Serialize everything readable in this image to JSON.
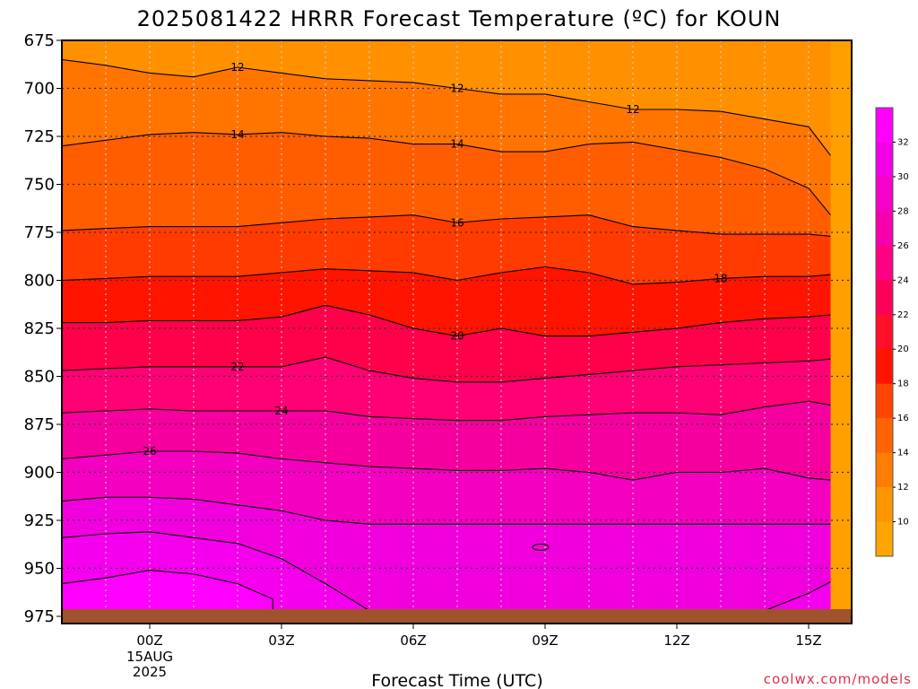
{
  "chart_data": {
    "type": "contour",
    "title": "2025081422 HRRR Forecast Temperature (ºC) for KOUN",
    "xlabel": "Forecast Time (UTC)",
    "ylabel": "",
    "y_axis": {
      "ticks": [
        675,
        700,
        725,
        750,
        775,
        800,
        825,
        850,
        875,
        900,
        925,
        950,
        975
      ],
      "range": [
        975,
        675
      ],
      "inverted": true
    },
    "x_axis": {
      "range_hours": [
        -3,
        15.5
      ],
      "ticks": [
        {
          "hour": 0,
          "label": "00Z",
          "date_line1": "15AUG",
          "date_line2": "2025"
        },
        {
          "hour": 3,
          "label": "03Z"
        },
        {
          "hour": 6,
          "label": "06Z"
        },
        {
          "hour": 9,
          "label": "09Z"
        },
        {
          "hour": 12,
          "label": "12Z"
        },
        {
          "hour": 15,
          "label": "15Z"
        }
      ]
    },
    "grid": true,
    "ground_color": "#a0522d",
    "colorbar": {
      "placement": "right",
      "labels": [
        "32",
        "30",
        "28",
        "26",
        "24",
        "22",
        "20",
        "18",
        "16",
        "14",
        "12",
        "10"
      ],
      "bands": [
        "#ff00ff",
        "#f400e6",
        "#f500c8",
        "#f500ac",
        "#ff0084",
        "#ff0058",
        "#ff0f28",
        "#ff1400",
        "#ff4500",
        "#ff6400",
        "#ff7d00",
        "#ff9600",
        "#ffa500"
      ]
    },
    "fill_bands": [
      {
        "bottom_isotherm": "12",
        "color": "#ff9100"
      },
      {
        "bottom_isotherm": "14",
        "color": "#ff7500"
      },
      {
        "bottom_isotherm": "16",
        "color": "#ff5d00"
      },
      {
        "bottom_isotherm": "18",
        "color": "#ff3b00"
      },
      {
        "bottom_isotherm": "20",
        "color": "#ff1400"
      },
      {
        "bottom_isotherm": "22",
        "color": "#ff004a"
      },
      {
        "bottom_isotherm": "24",
        "color": "#ff0075"
      },
      {
        "bottom_isotherm": "26",
        "color": "#f5009f"
      },
      {
        "bottom_isotherm": "28",
        "color": "#f400c1"
      },
      {
        "bottom_isotherm": "30",
        "color": "#f100de"
      },
      {
        "bottom_isotherm": "bottom",
        "color": "#f500ef"
      }
    ],
    "isotherms": [
      {
        "name": "12",
        "label_at": [
          2.0,
          7.0
        ],
        "label_at_2": [
          11.0,
          12.0
        ],
        "points": [
          [
            -3,
            684
          ],
          [
            -2,
            685
          ],
          [
            -1,
            688
          ],
          [
            0,
            692
          ],
          [
            1,
            694
          ],
          [
            2,
            689
          ],
          [
            3,
            692
          ],
          [
            4,
            695
          ],
          [
            5,
            696
          ],
          [
            6,
            697
          ],
          [
            7,
            700
          ],
          [
            8,
            703
          ],
          [
            9,
            703
          ],
          [
            10,
            707
          ],
          [
            11,
            711
          ],
          [
            12,
            711
          ],
          [
            13,
            712
          ],
          [
            14,
            716
          ],
          [
            15,
            720
          ],
          [
            15.5,
            735
          ]
        ]
      },
      {
        "name": "14",
        "label_at": [
          2.0,
          7.0
        ],
        "points": [
          [
            -3,
            731
          ],
          [
            -2,
            730
          ],
          [
            -1,
            727
          ],
          [
            0,
            724
          ],
          [
            1,
            723
          ],
          [
            2,
            724
          ],
          [
            3,
            723
          ],
          [
            4,
            725
          ],
          [
            5,
            726
          ],
          [
            6,
            729
          ],
          [
            7,
            729
          ],
          [
            8,
            733
          ],
          [
            9,
            733
          ],
          [
            10,
            729
          ],
          [
            11,
            728
          ],
          [
            12,
            732
          ],
          [
            13,
            736
          ],
          [
            14,
            742
          ],
          [
            15,
            752
          ],
          [
            15.5,
            766
          ]
        ]
      },
      {
        "name": "16",
        "label_at": [
          7.0
        ],
        "points": [
          [
            -3,
            776
          ],
          [
            -2,
            774
          ],
          [
            -1,
            773
          ],
          [
            0,
            772
          ],
          [
            1,
            772
          ],
          [
            2,
            772
          ],
          [
            3,
            770
          ],
          [
            4,
            768
          ],
          [
            5,
            767
          ],
          [
            6,
            766
          ],
          [
            7,
            770
          ],
          [
            8,
            768
          ],
          [
            9,
            767
          ],
          [
            10,
            766
          ],
          [
            11,
            772
          ],
          [
            12,
            774
          ],
          [
            13,
            776
          ],
          [
            14,
            776
          ],
          [
            15,
            776
          ],
          [
            15.5,
            777
          ]
        ]
      },
      {
        "name": "18",
        "label_at": [
          13.0
        ],
        "points": [
          [
            -3,
            801
          ],
          [
            -2,
            800
          ],
          [
            -1,
            799
          ],
          [
            0,
            798
          ],
          [
            1,
            798
          ],
          [
            2,
            798
          ],
          [
            3,
            796
          ],
          [
            4,
            794
          ],
          [
            5,
            795
          ],
          [
            6,
            796
          ],
          [
            7,
            800
          ],
          [
            8,
            796
          ],
          [
            9,
            793
          ],
          [
            10,
            796
          ],
          [
            11,
            802
          ],
          [
            12,
            801
          ],
          [
            13,
            799
          ],
          [
            14,
            798
          ],
          [
            15,
            798
          ],
          [
            15.5,
            797
          ]
        ]
      },
      {
        "name": "20",
        "label_at": [
          7.0
        ],
        "points": [
          [
            -3,
            822
          ],
          [
            -2,
            822
          ],
          [
            -1,
            822
          ],
          [
            0,
            821
          ],
          [
            1,
            821
          ],
          [
            2,
            821
          ],
          [
            3,
            819
          ],
          [
            4,
            813
          ],
          [
            5,
            818
          ],
          [
            6,
            825
          ],
          [
            7,
            829
          ],
          [
            8,
            825
          ],
          [
            9,
            829
          ],
          [
            10,
            829
          ],
          [
            11,
            827
          ],
          [
            12,
            825
          ],
          [
            13,
            822
          ],
          [
            14,
            820
          ],
          [
            15,
            819
          ],
          [
            15.5,
            818
          ]
        ]
      },
      {
        "name": "22",
        "label_at": [
          2.0
        ],
        "points": [
          [
            -3,
            847
          ],
          [
            -2,
            847
          ],
          [
            -1,
            846
          ],
          [
            0,
            845
          ],
          [
            1,
            845
          ],
          [
            2,
            845
          ],
          [
            3,
            845
          ],
          [
            4,
            840
          ],
          [
            5,
            847
          ],
          [
            6,
            851
          ],
          [
            7,
            853
          ],
          [
            8,
            853
          ],
          [
            9,
            851
          ],
          [
            10,
            849
          ],
          [
            11,
            847
          ],
          [
            12,
            845
          ],
          [
            13,
            844
          ],
          [
            14,
            843
          ],
          [
            15,
            842
          ],
          [
            15.5,
            841
          ]
        ]
      },
      {
        "name": "24",
        "label_at": [
          3.0
        ],
        "points": [
          [
            -3,
            869
          ],
          [
            -2,
            869
          ],
          [
            -1,
            868
          ],
          [
            0,
            867
          ],
          [
            1,
            868
          ],
          [
            2,
            868
          ],
          [
            3,
            868
          ],
          [
            4,
            868
          ],
          [
            5,
            871
          ],
          [
            6,
            872
          ],
          [
            7,
            873
          ],
          [
            8,
            873
          ],
          [
            9,
            871
          ],
          [
            10,
            870
          ],
          [
            11,
            869
          ],
          [
            12,
            869
          ],
          [
            13,
            870
          ],
          [
            14,
            866
          ],
          [
            15,
            863
          ],
          [
            15.5,
            865
          ]
        ]
      },
      {
        "name": "26",
        "label_at": [
          0.0
        ],
        "points": [
          [
            -3,
            894
          ],
          [
            -2,
            893
          ],
          [
            -1,
            891
          ],
          [
            0,
            889
          ],
          [
            1,
            889
          ],
          [
            2,
            890
          ],
          [
            3,
            893
          ],
          [
            4,
            895
          ],
          [
            5,
            897
          ],
          [
            6,
            898
          ],
          [
            7,
            899
          ],
          [
            8,
            899
          ],
          [
            9,
            898
          ],
          [
            10,
            900
          ],
          [
            11,
            904
          ],
          [
            12,
            900
          ],
          [
            13,
            900
          ],
          [
            14,
            898
          ],
          [
            15,
            903
          ],
          [
            15.5,
            904
          ]
        ]
      },
      {
        "name": "28",
        "label_at": [],
        "points": [
          [
            -3,
            919
          ],
          [
            -2,
            915
          ],
          [
            -1,
            913
          ],
          [
            0,
            913
          ],
          [
            1,
            914
          ],
          [
            2,
            917
          ],
          [
            3,
            920
          ],
          [
            4,
            925
          ],
          [
            5,
            927
          ],
          [
            6,
            927
          ],
          [
            7,
            927
          ],
          [
            8,
            927
          ],
          [
            9,
            927
          ],
          [
            10,
            927
          ],
          [
            11,
            927
          ],
          [
            12,
            927
          ],
          [
            13,
            927
          ],
          [
            14,
            927
          ],
          [
            15,
            927
          ],
          [
            15.5,
            927
          ]
        ]
      },
      {
        "name": "30",
        "label_at": [],
        "points": [
          [
            -3,
            938
          ],
          [
            -2,
            934
          ],
          [
            -1,
            932
          ],
          [
            0,
            931
          ],
          [
            1,
            934
          ],
          [
            2,
            937
          ],
          [
            3,
            945
          ],
          [
            4,
            958
          ],
          [
            5,
            972
          ],
          [
            6,
            972
          ],
          [
            7,
            972
          ],
          [
            8,
            972
          ],
          [
            9,
            972
          ],
          [
            10,
            972
          ],
          [
            11,
            972
          ],
          [
            12,
            972
          ],
          [
            13,
            972
          ],
          [
            14,
            972
          ],
          [
            15,
            963
          ],
          [
            15.5,
            957
          ]
        ]
      }
    ],
    "watermark": "coolwx.com/models"
  }
}
